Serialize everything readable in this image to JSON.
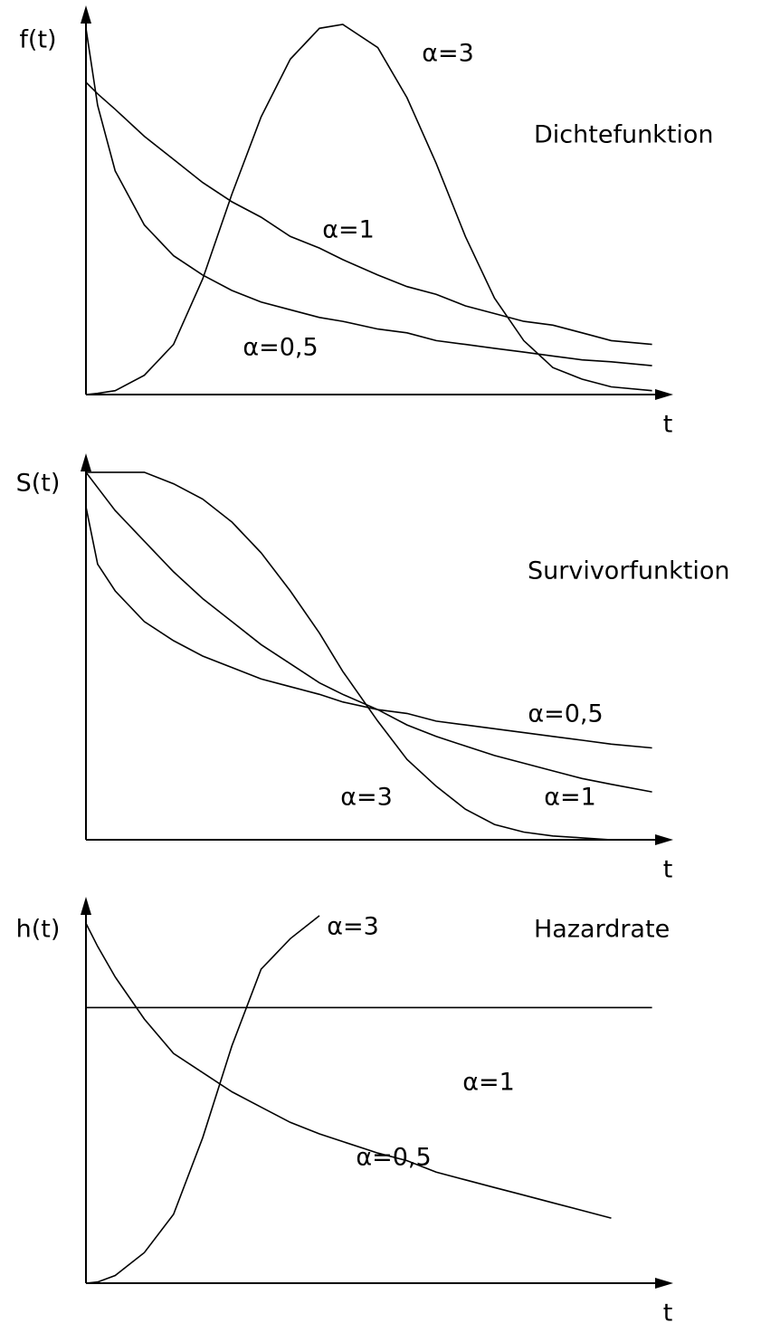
{
  "chart_data": [
    {
      "type": "line",
      "ylabel": "f(t)",
      "xlabel": "t",
      "annotation": "Dichtefunktion",
      "xlim": [
        0,
        1
      ],
      "ylim": [
        0,
        1
      ],
      "x": [
        0,
        0.02,
        0.05,
        0.1,
        0.15,
        0.2,
        0.25,
        0.3,
        0.35,
        0.4,
        0.44,
        0.5,
        0.55,
        0.6,
        0.65,
        0.7,
        0.75,
        0.8,
        0.85,
        0.9,
        0.97
      ],
      "series": [
        {
          "name": "α=3",
          "color": "#000000",
          "values": [
            0,
            0.003,
            0.01,
            0.05,
            0.13,
            0.3,
            0.52,
            0.72,
            0.87,
            0.95,
            0.96,
            0.9,
            0.77,
            0.6,
            0.41,
            0.25,
            0.14,
            0.07,
            0.04,
            0.02,
            0.01
          ]
        },
        {
          "name": "α=1",
          "color": "#000000",
          "values": [
            0.81,
            0.78,
            0.74,
            0.67,
            0.61,
            0.55,
            0.5,
            0.46,
            0.41,
            0.38,
            0.35,
            0.31,
            0.28,
            0.26,
            0.23,
            0.21,
            0.19,
            0.18,
            0.16,
            0.14,
            0.13
          ]
        },
        {
          "name": "α=0,5",
          "color": "#000000",
          "values": [
            0.95,
            0.75,
            0.58,
            0.44,
            0.36,
            0.31,
            0.27,
            0.24,
            0.22,
            0.2,
            0.19,
            0.17,
            0.16,
            0.14,
            0.13,
            0.12,
            0.11,
            0.1,
            0.09,
            0.085,
            0.075
          ]
        }
      ]
    },
    {
      "type": "line",
      "ylabel": "S(t)",
      "xlabel": "t",
      "annotation": "Survivorfunktion",
      "xlim": [
        0,
        1
      ],
      "ylim": [
        0,
        1
      ],
      "x": [
        0,
        0.02,
        0.05,
        0.1,
        0.15,
        0.2,
        0.25,
        0.3,
        0.35,
        0.4,
        0.44,
        0.5,
        0.55,
        0.6,
        0.65,
        0.7,
        0.75,
        0.8,
        0.85,
        0.9,
        0.97
      ],
      "series": [
        {
          "name": "α=0,5",
          "color": "#000000",
          "values": [
            0.87,
            0.72,
            0.65,
            0.57,
            0.52,
            0.48,
            0.45,
            0.42,
            0.4,
            0.38,
            0.36,
            0.34,
            0.33,
            0.31,
            0.3,
            0.29,
            0.28,
            0.27,
            0.26,
            0.25,
            0.24
          ]
        },
        {
          "name": "α=1",
          "color": "#000000",
          "values": [
            0.96,
            0.92,
            0.86,
            0.78,
            0.7,
            0.63,
            0.57,
            0.51,
            0.46,
            0.41,
            0.38,
            0.34,
            0.3,
            0.27,
            0.245,
            0.22,
            0.2,
            0.18,
            0.16,
            0.145,
            0.125
          ]
        },
        {
          "name": "α=3",
          "color": "#000000",
          "values": [
            0.96,
            0.96,
            0.96,
            0.96,
            0.93,
            0.89,
            0.83,
            0.75,
            0.65,
            0.54,
            0.44,
            0.31,
            0.21,
            0.14,
            0.08,
            0.04,
            0.02,
            0.01,
            0.005,
            0,
            null
          ]
        }
      ]
    },
    {
      "type": "line",
      "ylabel": "h(t)",
      "xlabel": "t",
      "annotation": "Hazardrate",
      "xlim": [
        0,
        1
      ],
      "ylim": [
        0,
        1
      ],
      "x": [
        0,
        0.02,
        0.05,
        0.1,
        0.15,
        0.2,
        0.25,
        0.3,
        0.35,
        0.4,
        0.44,
        0.5,
        0.55,
        0.6,
        0.65,
        0.7,
        0.75,
        0.8,
        0.85,
        0.9,
        0.97
      ],
      "series": [
        {
          "name": "α=3",
          "color": "#000000",
          "values": [
            0,
            0.003,
            0.02,
            0.08,
            0.18,
            0.38,
            0.62,
            0.82,
            0.9,
            0.96,
            null,
            null,
            null,
            null,
            null,
            null,
            null,
            null,
            null,
            null,
            null
          ]
        },
        {
          "name": "α=1",
          "color": "#000000",
          "values": [
            0.72,
            0.72,
            0.72,
            0.72,
            0.72,
            0.72,
            0.72,
            0.72,
            0.72,
            0.72,
            0.72,
            0.72,
            0.72,
            0.72,
            0.72,
            0.72,
            0.72,
            0.72,
            0.72,
            0.72,
            0.72
          ]
        },
        {
          "name": "α=0,5",
          "color": "#000000",
          "values": [
            0.94,
            0.88,
            0.8,
            0.69,
            0.6,
            0.55,
            0.5,
            0.46,
            0.42,
            0.39,
            0.37,
            0.34,
            0.32,
            0.29,
            0.27,
            0.25,
            0.23,
            0.21,
            0.19,
            0.17,
            null
          ]
        }
      ]
    }
  ]
}
